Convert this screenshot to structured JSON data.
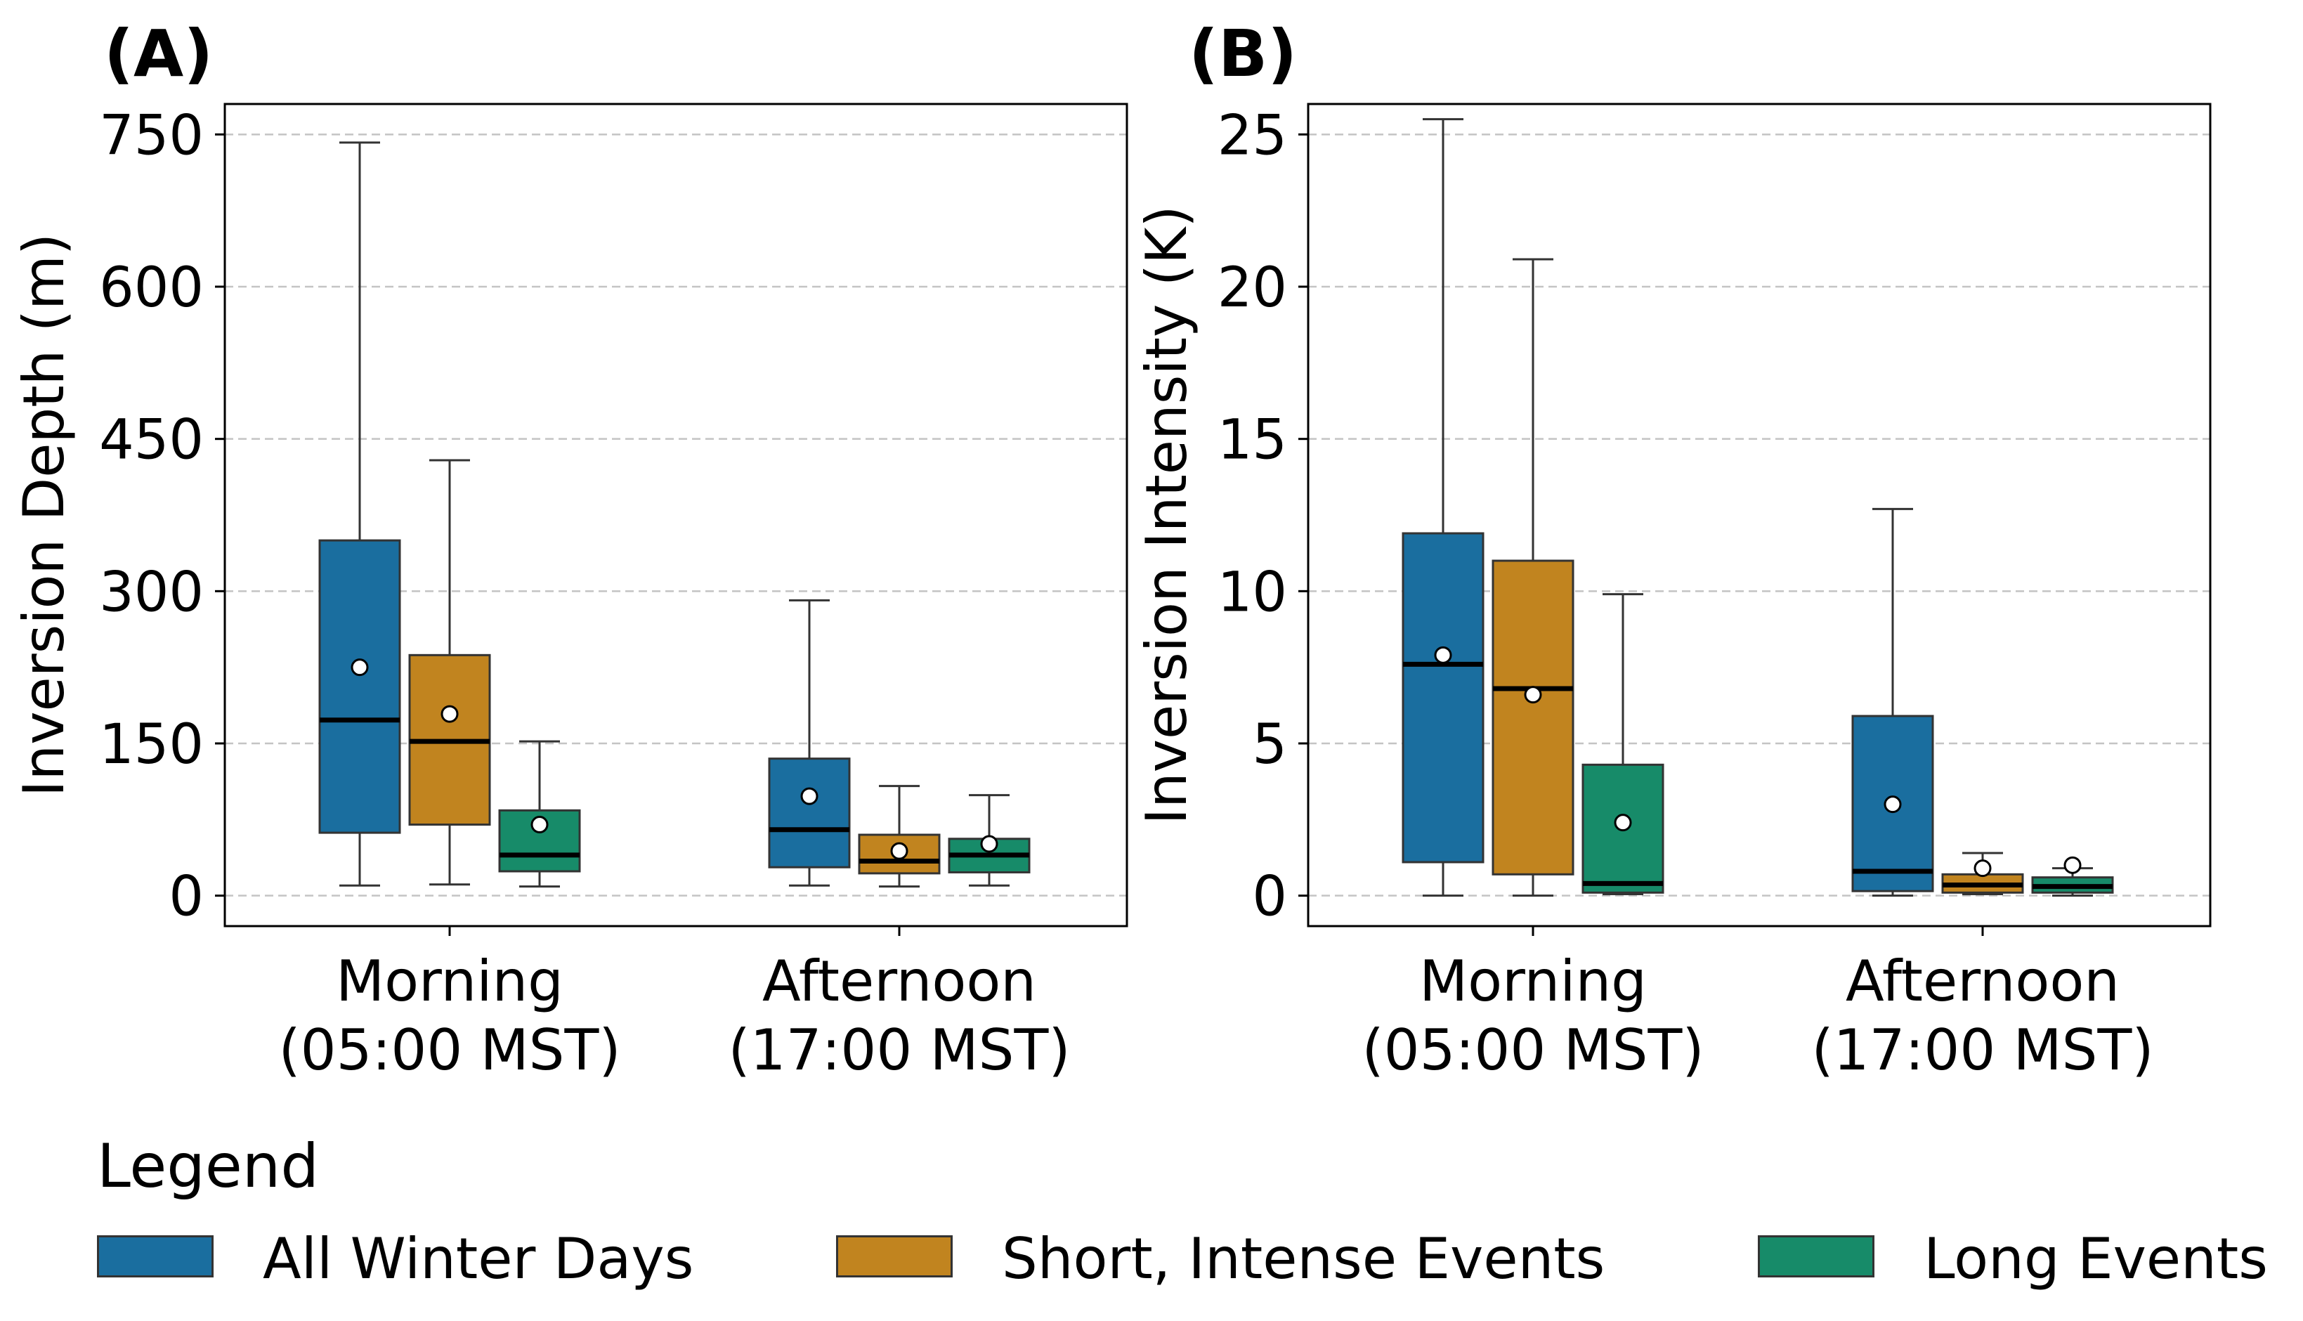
{
  "panels_labels": [
    "(A)",
    "(B)"
  ],
  "legend": {
    "title": "Legend",
    "entries": [
      {
        "label": "All Winter Days",
        "color": "#1a6e9f"
      },
      {
        "label": "Short, Intense Events",
        "color": "#c1841f"
      },
      {
        "label": "Long Events",
        "color": "#178b69"
      }
    ]
  },
  "chart_data": [
    {
      "type": "box",
      "panel_label": "(A)",
      "ylabel": "Inversion Depth (m)",
      "ylim": [
        -30,
        780
      ],
      "yticks": [
        0,
        150,
        300,
        450,
        600,
        750
      ],
      "grid": "y-dashed",
      "categories": [
        "Morning\n(05:00 MST)",
        "Afternoon\n(17:00 MST)"
      ],
      "series": [
        {
          "name": "All Winter Days",
          "color": "#1a6e9f",
          "boxes": [
            {
              "whisker_low": 10,
              "q1": 62,
              "median": 173,
              "q3": 350,
              "whisker_high": 742,
              "mean": 225
            },
            {
              "whisker_low": 10,
              "q1": 28,
              "median": 65,
              "q3": 135,
              "whisker_high": 291,
              "mean": 98
            }
          ]
        },
        {
          "name": "Short, Intense Events",
          "color": "#c1841f",
          "boxes": [
            {
              "whisker_low": 11,
              "q1": 70,
              "median": 152,
              "q3": 237,
              "whisker_high": 429,
              "mean": 179
            },
            {
              "whisker_low": 9,
              "q1": 22,
              "median": 34,
              "q3": 60,
              "whisker_high": 108,
              "mean": 44
            }
          ]
        },
        {
          "name": "Long Events",
          "color": "#178b69",
          "boxes": [
            {
              "whisker_low": 9,
              "q1": 24,
              "median": 40,
              "q3": 84,
              "whisker_high": 152,
              "mean": 70
            },
            {
              "whisker_low": 10,
              "q1": 23,
              "median": 40,
              "q3": 56,
              "whisker_high": 99,
              "mean": 51
            }
          ]
        }
      ]
    },
    {
      "type": "box",
      "panel_label": "(B)",
      "ylabel": "Inversion Intensity (K)",
      "ylim": [
        -1,
        26
      ],
      "yticks": [
        0,
        5,
        10,
        15,
        20,
        25
      ],
      "grid": "y-dashed",
      "categories": [
        "Morning\n(05:00 MST)",
        "Afternoon\n(17:00 MST)"
      ],
      "series": [
        {
          "name": "All Winter Days",
          "color": "#1a6e9f",
          "boxes": [
            {
              "whisker_low": 0.0,
              "q1": 1.1,
              "median": 7.6,
              "q3": 11.9,
              "whisker_high": 25.5,
              "mean": 7.9
            },
            {
              "whisker_low": 0.0,
              "q1": 0.15,
              "median": 0.8,
              "q3": 5.9,
              "whisker_high": 12.7,
              "mean": 3.0
            }
          ]
        },
        {
          "name": "Short, Intense Events",
          "color": "#c1841f",
          "boxes": [
            {
              "whisker_low": 0.0,
              "q1": 0.7,
              "median": 6.8,
              "q3": 11.0,
              "whisker_high": 20.9,
              "mean": 6.6
            },
            {
              "whisker_low": 0.05,
              "q1": 0.1,
              "median": 0.35,
              "q3": 0.7,
              "whisker_high": 1.4,
              "mean": 0.9
            }
          ]
        },
        {
          "name": "Long Events",
          "color": "#178b69",
          "boxes": [
            {
              "whisker_low": 0.05,
              "q1": 0.1,
              "median": 0.4,
              "q3": 4.3,
              "whisker_high": 9.9,
              "mean": 2.4
            },
            {
              "whisker_low": 0.0,
              "q1": 0.1,
              "median": 0.3,
              "q3": 0.6,
              "whisker_high": 0.9,
              "mean": 1.0
            }
          ]
        }
      ]
    }
  ]
}
